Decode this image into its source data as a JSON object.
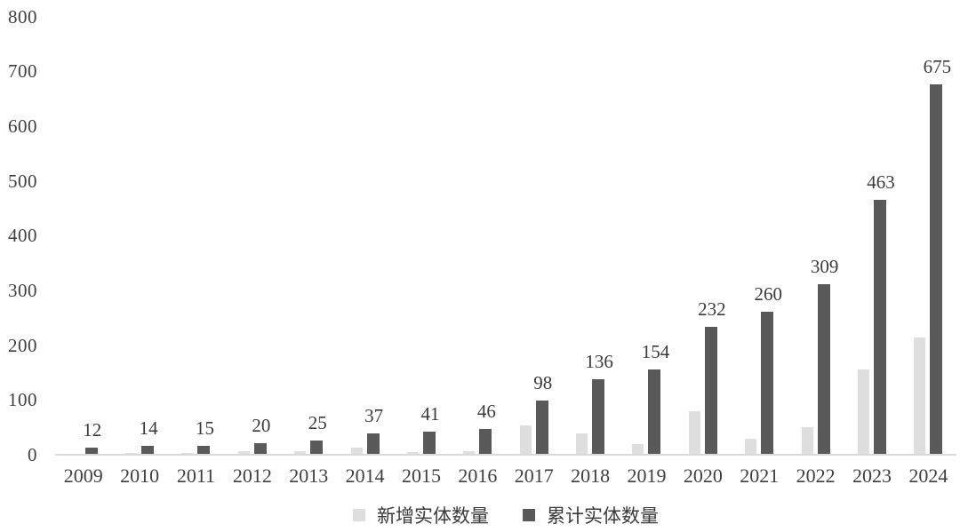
{
  "chart_data": {
    "type": "bar",
    "title": "",
    "xlabel": "",
    "ylabel": "",
    "categories": [
      "2009",
      "2010",
      "2011",
      "2012",
      "2013",
      "2014",
      "2015",
      "2016",
      "2017",
      "2018",
      "2019",
      "2020",
      "2021",
      "2022",
      "2023",
      "2024"
    ],
    "series": [
      {
        "name": "新增实体数量",
        "color": "#dedede",
        "data_labels_shown": false,
        "values": [
          0,
          2,
          1,
          5,
          5,
          12,
          4,
          5,
          52,
          38,
          18,
          78,
          28,
          49,
          154,
          212
        ]
      },
      {
        "name": "累计实体数量",
        "color": "#595959",
        "data_labels_shown": true,
        "values": [
          12,
          14,
          15,
          20,
          25,
          37,
          41,
          46,
          98,
          136,
          154,
          232,
          260,
          309,
          463,
          675
        ]
      }
    ],
    "data_labels": [
      "12",
      "14",
      "15",
      "20",
      "25",
      "37",
      "41",
      "46",
      "98",
      "136",
      "154",
      "232",
      "260",
      "309",
      "463",
      "675"
    ],
    "ylim": [
      0,
      800
    ],
    "ytick_interval": 100,
    "yticks": [
      "0",
      "100",
      "200",
      "300",
      "400",
      "500",
      "600",
      "700",
      "800"
    ],
    "grid": false,
    "legend_position": "bottom",
    "axis_line_color": "#d9d9d9",
    "text_color": "#3f3f3f",
    "background_color": "#ffffff"
  },
  "legend": {
    "item_new": "新增实体数量",
    "item_cumulative": "累计实体数量"
  }
}
